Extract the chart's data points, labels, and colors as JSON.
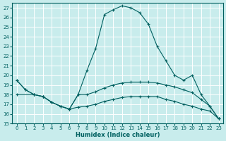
{
  "xlabel": "Humidex (Indice chaleur)",
  "bg_color": "#c8ecec",
  "grid_color": "#ffffff",
  "line_color": "#006060",
  "xlim": [
    -0.5,
    23.5
  ],
  "ylim": [
    15,
    27.5
  ],
  "yticks": [
    15,
    16,
    17,
    18,
    19,
    20,
    21,
    22,
    23,
    24,
    25,
    26,
    27
  ],
  "xticks": [
    0,
    1,
    2,
    3,
    4,
    5,
    6,
    7,
    8,
    9,
    10,
    11,
    12,
    13,
    14,
    15,
    16,
    17,
    18,
    19,
    20,
    21,
    22,
    23
  ],
  "series1_x": [
    0,
    1,
    2,
    3,
    4,
    5,
    6,
    7,
    8,
    9,
    10,
    11,
    12,
    13,
    14,
    15,
    16,
    17,
    18,
    19,
    20,
    21,
    22,
    23
  ],
  "series1_y": [
    19.5,
    18.5,
    18.0,
    17.8,
    17.2,
    16.8,
    16.5,
    18.0,
    20.5,
    22.8,
    26.3,
    26.8,
    27.2,
    27.0,
    26.5,
    25.3,
    23.0,
    21.5,
    20.0,
    19.5,
    20.0,
    18.0,
    16.8,
    15.5
  ],
  "series2_x": [
    0,
    1,
    2,
    3,
    4,
    5,
    6,
    7,
    8,
    9,
    10,
    11,
    12,
    13,
    14,
    15,
    16,
    17,
    18,
    19,
    20,
    21,
    22,
    23
  ],
  "series2_y": [
    19.5,
    18.5,
    18.0,
    17.8,
    17.2,
    16.8,
    16.5,
    18.0,
    18.0,
    18.3,
    18.7,
    19.0,
    19.2,
    19.3,
    19.3,
    19.3,
    19.2,
    19.0,
    18.8,
    18.5,
    18.2,
    17.5,
    16.8,
    15.5
  ],
  "series3_x": [
    0,
    2,
    3,
    4,
    5,
    6,
    7,
    8,
    9,
    10,
    11,
    12,
    13,
    14,
    15,
    16,
    17,
    18,
    19,
    20,
    21,
    22,
    23
  ],
  "series3_y": [
    18.0,
    18.0,
    17.8,
    17.2,
    16.8,
    16.5,
    16.7,
    16.8,
    17.0,
    17.3,
    17.5,
    17.7,
    17.8,
    17.8,
    17.8,
    17.8,
    17.5,
    17.3,
    17.0,
    16.8,
    16.5,
    16.3,
    15.5
  ]
}
